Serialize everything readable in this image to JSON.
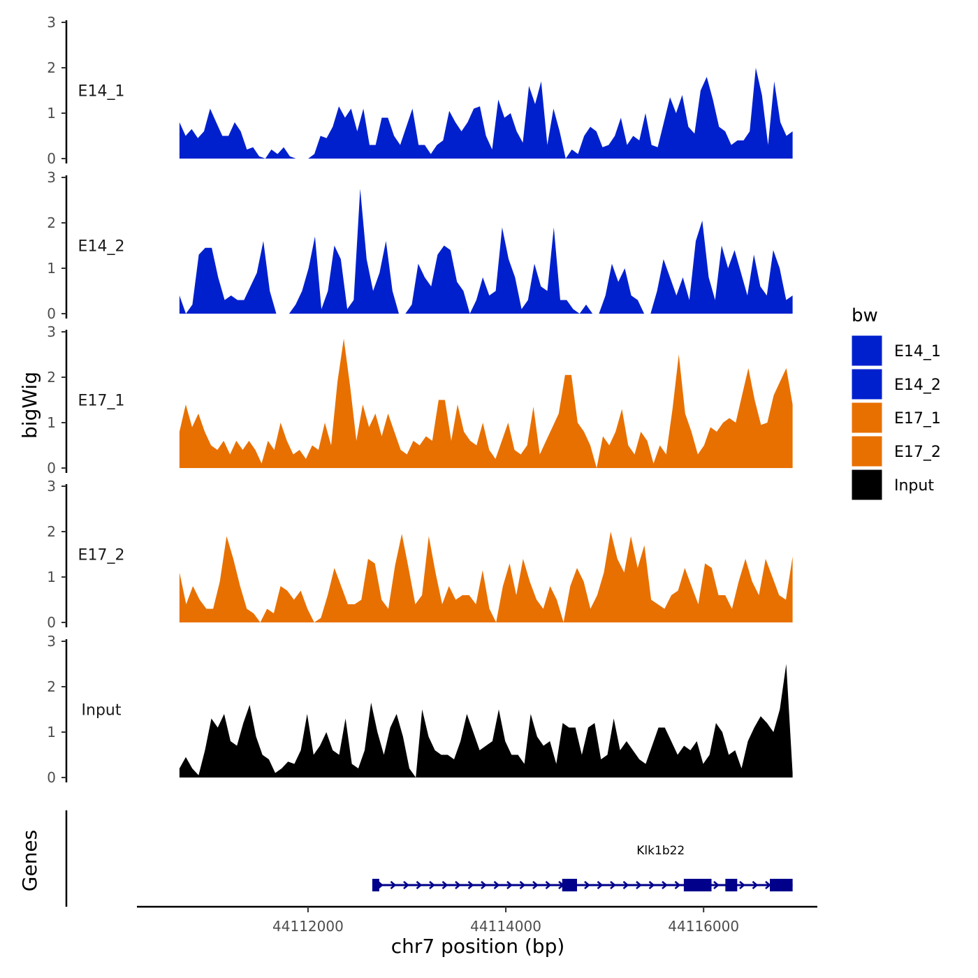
{
  "chart_data": {
    "type": "area",
    "ylabel": "bigWig",
    "xlabel": "chr7 position (bp)",
    "ylim": [
      0,
      3
    ],
    "y_ticks": [
      "0",
      "1",
      "2",
      "3"
    ],
    "xlim": [
      44110270,
      44117150
    ],
    "x_ticks": [
      {
        "value": 44112000,
        "label": "44112000"
      },
      {
        "value": 44114000,
        "label": "44114000"
      },
      {
        "value": 44116000,
        "label": "44116000"
      }
    ],
    "data_range": [
      44110700,
      44116900
    ],
    "colors": {
      "E14_1": "#0020cd",
      "E14_2": "#0020cd",
      "E17_1": "#e87000",
      "E17_2": "#e87000",
      "Input": "#000000",
      "gene": "#00008b"
    },
    "series": [
      {
        "name": "E14_1",
        "values": [
          0.8,
          0.5,
          0.65,
          0.45,
          0.6,
          1.1,
          0.8,
          0.5,
          0.5,
          0.8,
          0.6,
          0.2,
          0.25,
          0.05,
          0.0,
          0.2,
          0.1,
          0.25,
          0.05,
          0.0,
          0.0,
          0.0,
          0.1,
          0.5,
          0.45,
          0.7,
          1.15,
          0.9,
          1.1,
          0.6,
          1.1,
          0.3,
          0.3,
          0.9,
          0.9,
          0.5,
          0.3,
          0.7,
          1.1,
          0.3,
          0.3,
          0.1,
          0.3,
          0.4,
          1.05,
          0.8,
          0.6,
          0.8,
          1.1,
          1.15,
          0.5,
          0.2,
          1.3,
          0.9,
          1.0,
          0.6,
          0.35,
          1.6,
          1.2,
          1.7,
          0.3,
          1.1,
          0.6,
          0.0,
          0.2,
          0.1,
          0.5,
          0.7,
          0.6,
          0.25,
          0.3,
          0.5,
          0.9,
          0.3,
          0.5,
          0.4,
          1.0,
          0.3,
          0.25,
          0.8,
          1.35,
          1.0,
          1.4,
          0.7,
          0.55,
          1.5,
          1.8,
          1.3,
          0.7,
          0.6,
          0.3,
          0.4,
          0.4,
          0.6,
          2.0,
          1.4,
          0.3,
          1.7,
          0.8,
          0.5,
          0.6
        ]
      },
      {
        "name": "E14_2",
        "values": [
          0.4,
          0.0,
          0.2,
          1.3,
          1.45,
          1.45,
          0.8,
          0.3,
          0.4,
          0.3,
          0.3,
          0.6,
          0.9,
          1.6,
          0.5,
          0.0,
          0.0,
          0.0,
          0.2,
          0.5,
          1.0,
          1.7,
          0.1,
          0.5,
          1.5,
          1.2,
          0.1,
          0.3,
          2.75,
          1.2,
          0.5,
          0.9,
          1.6,
          0.5,
          0.0,
          0.0,
          0.2,
          1.1,
          0.8,
          0.6,
          1.3,
          1.5,
          1.4,
          0.7,
          0.5,
          0.0,
          0.3,
          0.8,
          0.4,
          0.5,
          1.9,
          1.2,
          0.8,
          0.1,
          0.3,
          1.1,
          0.6,
          0.5,
          1.9,
          0.3,
          0.3,
          0.1,
          0.0,
          0.2,
          0.0,
          0.0,
          0.4,
          1.1,
          0.7,
          1.0,
          0.4,
          0.3,
          0.0,
          0.0,
          0.5,
          1.2,
          0.8,
          0.4,
          0.8,
          0.3,
          1.6,
          2.05,
          0.8,
          0.3,
          1.5,
          1.0,
          1.4,
          0.9,
          0.4,
          1.3,
          0.6,
          0.4,
          1.4,
          1.0,
          0.3,
          0.4
        ]
      },
      {
        "name": "E17_1",
        "values": [
          0.8,
          1.4,
          0.9,
          1.2,
          0.8,
          0.5,
          0.4,
          0.6,
          0.3,
          0.6,
          0.4,
          0.6,
          0.4,
          0.1,
          0.6,
          0.4,
          1.0,
          0.6,
          0.3,
          0.4,
          0.2,
          0.5,
          0.4,
          1.0,
          0.5,
          1.9,
          2.85,
          1.8,
          0.6,
          1.4,
          0.9,
          1.2,
          0.7,
          1.2,
          0.8,
          0.4,
          0.3,
          0.6,
          0.5,
          0.7,
          0.6,
          1.5,
          1.5,
          0.6,
          1.4,
          0.8,
          0.6,
          0.5,
          1.0,
          0.4,
          0.2,
          0.6,
          1.0,
          0.4,
          0.3,
          0.5,
          1.35,
          0.3,
          0.6,
          0.9,
          1.2,
          2.05,
          2.05,
          1.0,
          0.8,
          0.5,
          0.0,
          0.7,
          0.5,
          0.8,
          1.3,
          0.5,
          0.3,
          0.8,
          0.6,
          0.1,
          0.5,
          0.3,
          1.3,
          2.5,
          1.2,
          0.8,
          0.3,
          0.5,
          0.9,
          0.8,
          1.0,
          1.1,
          1.0,
          1.6,
          2.2,
          1.5,
          0.95,
          1.0,
          1.6,
          1.9,
          2.2,
          1.4
        ]
      },
      {
        "name": "E17_2",
        "values": [
          1.1,
          0.4,
          0.8,
          0.5,
          0.3,
          0.3,
          0.9,
          1.9,
          1.4,
          0.8,
          0.3,
          0.2,
          0.0,
          0.3,
          0.2,
          0.8,
          0.7,
          0.5,
          0.7,
          0.3,
          0.0,
          0.1,
          0.6,
          1.2,
          0.8,
          0.4,
          0.4,
          0.5,
          1.4,
          1.3,
          0.5,
          0.3,
          1.25,
          1.95,
          1.2,
          0.4,
          0.6,
          1.9,
          1.1,
          0.4,
          0.8,
          0.5,
          0.6,
          0.6,
          0.4,
          1.15,
          0.3,
          0.0,
          0.8,
          1.3,
          0.6,
          1.4,
          0.9,
          0.5,
          0.3,
          0.8,
          0.5,
          0.0,
          0.8,
          1.2,
          0.9,
          0.3,
          0.6,
          1.1,
          2.0,
          1.4,
          1.1,
          1.9,
          1.2,
          1.7,
          0.5,
          0.4,
          0.3,
          0.6,
          0.7,
          1.2,
          0.8,
          0.4,
          1.3,
          1.2,
          0.6,
          0.6,
          0.3,
          0.9,
          1.4,
          0.9,
          0.6,
          1.4,
          1.0,
          0.6,
          0.5,
          1.45
        ]
      },
      {
        "name": "Input",
        "values": [
          0.2,
          0.45,
          0.2,
          0.05,
          0.6,
          1.3,
          1.1,
          1.4,
          0.8,
          0.7,
          1.2,
          1.6,
          0.9,
          0.5,
          0.4,
          0.1,
          0.2,
          0.35,
          0.3,
          0.6,
          1.4,
          0.5,
          0.7,
          1.0,
          0.6,
          0.5,
          1.3,
          0.3,
          0.2,
          0.6,
          1.65,
          1.0,
          0.5,
          1.1,
          1.4,
          0.9,
          0.2,
          0.0,
          1.5,
          0.9,
          0.6,
          0.5,
          0.5,
          0.4,
          0.8,
          1.4,
          1.0,
          0.6,
          0.7,
          0.8,
          1.5,
          0.8,
          0.5,
          0.5,
          0.3,
          1.4,
          0.9,
          0.7,
          0.8,
          0.3,
          1.2,
          1.1,
          1.1,
          0.5,
          1.1,
          1.2,
          0.4,
          0.5,
          1.3,
          0.6,
          0.8,
          0.6,
          0.4,
          0.3,
          0.7,
          1.1,
          1.1,
          0.8,
          0.5,
          0.7,
          0.6,
          0.8,
          0.3,
          0.5,
          1.2,
          1.0,
          0.5,
          0.6,
          0.2,
          0.8,
          1.1,
          1.35,
          1.2,
          1.0,
          1.5,
          2.5,
          0.1
        ]
      }
    ],
    "legend": {
      "title": "bw",
      "position": "right",
      "entries": [
        {
          "label": "E14_1",
          "color": "#0020cd"
        },
        {
          "label": "E14_2",
          "color": "#0020cd"
        },
        {
          "label": "E17_1",
          "color": "#e87000"
        },
        {
          "label": "E17_2",
          "color": "#e87000"
        },
        {
          "label": "Input",
          "color": "#000000"
        }
      ]
    },
    "genes_track": {
      "label": "Genes",
      "genes": [
        {
          "name": "Klk1b22",
          "start": 44112650,
          "end": 44116900,
          "strand": "+",
          "exons": [
            [
              44112650,
              44112720
            ],
            [
              44114570,
              44114720
            ],
            [
              44115800,
              44116080
            ],
            [
              44116220,
              44116340
            ],
            [
              44116670,
              44116900
            ]
          ]
        }
      ]
    }
  }
}
